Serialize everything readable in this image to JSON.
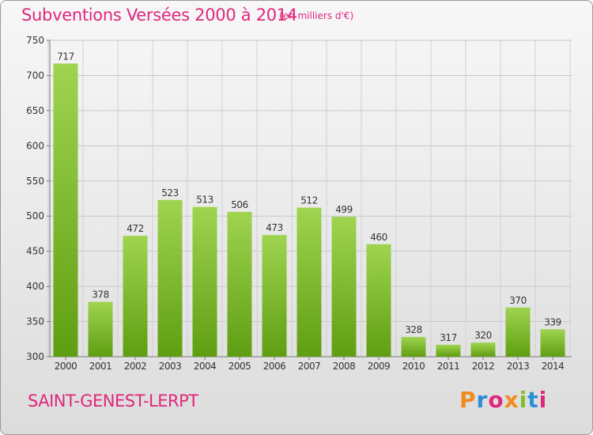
{
  "header": {
    "title": "Subventions Versées 2000 à 2014",
    "subtitle": "(en milliers d'€)"
  },
  "footer": {
    "commune": "SAINT-GENEST-LERPT",
    "logo": "Proxiti"
  },
  "colors": {
    "accent": "#e0277c",
    "bar_top": "#9fd450",
    "bar_bottom": "#5f9e12",
    "logo_letters": [
      "#f08c1e",
      "#2a8fd6",
      "#e0277c",
      "#f08c1e",
      "#7bbf2a",
      "#2a8fd6",
      "#e0277c"
    ]
  },
  "chart_data": {
    "type": "bar",
    "title": "Subventions Versées 2000 à 2014",
    "subtitle": "(en milliers d'€)",
    "categories": [
      "2000",
      "2001",
      "2002",
      "2003",
      "2004",
      "2005",
      "2006",
      "2007",
      "2008",
      "2009",
      "2010",
      "2011",
      "2012",
      "2013",
      "2014"
    ],
    "values": [
      717,
      378,
      472,
      523,
      513,
      506,
      473,
      512,
      499,
      460,
      328,
      317,
      320,
      370,
      339
    ],
    "ylim": [
      300,
      750
    ],
    "yticks": [
      300,
      350,
      400,
      450,
      500,
      550,
      600,
      650,
      700,
      750
    ],
    "grid": true,
    "legend": "none"
  }
}
